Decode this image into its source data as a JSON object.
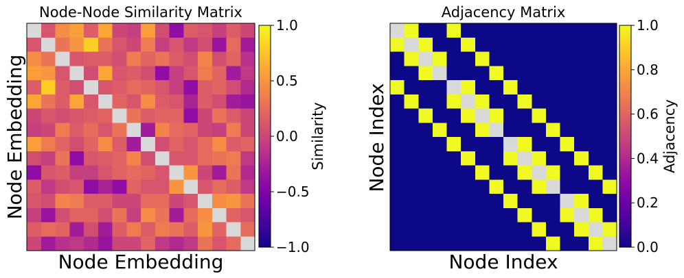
{
  "chart_data": [
    {
      "type": "heatmap",
      "title": "Node-Node Similarity Matrix",
      "xlabel": "Node Embedding",
      "ylabel": "Node Embedding",
      "colorbar_label": "Similarity",
      "colormap": "plasma",
      "diagonal_color": "#d9d9d9",
      "vmin": -1.0,
      "vmax": 1.0,
      "colorbar_ticks": [
        1.0,
        0.5,
        0.0,
        -0.5,
        -1.0
      ],
      "colorbar_tick_labels": [
        "1.0",
        "0.5",
        "0.0",
        "−0.5",
        "−1.0"
      ],
      "size": 16,
      "matrix": [
        [
          1.0,
          0.1,
          0.45,
          0.55,
          0.15,
          0.6,
          0.0,
          -0.05,
          0.55,
          0.05,
          -0.4,
          0.15,
          0.1,
          -0.05,
          0.15,
          0.0
        ],
        [
          0.1,
          1.0,
          0.3,
          0.5,
          0.8,
          0.3,
          0.1,
          0.0,
          0.35,
          -0.05,
          0.1,
          -0.1,
          0.05,
          -0.35,
          0.25,
          -0.3
        ],
        [
          0.45,
          0.3,
          1.0,
          0.1,
          0.15,
          0.15,
          0.05,
          0.35,
          0.2,
          0.3,
          0.15,
          0.05,
          0.4,
          0.05,
          0.2,
          -0.15
        ],
        [
          0.55,
          0.5,
          0.1,
          1.0,
          0.05,
          0.6,
          0.1,
          0.15,
          0.05,
          -0.4,
          -0.05,
          0.1,
          0.35,
          0.2,
          -0.3,
          -0.1
        ],
        [
          0.15,
          0.8,
          0.15,
          0.05,
          1.0,
          0.1,
          0.15,
          0.25,
          0.2,
          0.1,
          -0.05,
          -0.4,
          0.15,
          0.2,
          0.05,
          -0.2
        ],
        [
          0.6,
          0.3,
          0.15,
          0.6,
          0.1,
          1.0,
          0.2,
          0.1,
          0.45,
          0.15,
          0.1,
          -0.25,
          0.15,
          0.05,
          -0.3,
          -0.35
        ],
        [
          0.0,
          0.1,
          0.05,
          0.1,
          0.15,
          0.2,
          1.0,
          0.3,
          0.15,
          0.2,
          0.2,
          -0.4,
          0.0,
          0.3,
          0.15,
          0.0
        ],
        [
          -0.05,
          0.0,
          0.35,
          0.15,
          0.25,
          0.1,
          0.3,
          1.0,
          -0.3,
          0.4,
          0.25,
          0.2,
          0.0,
          -0.05,
          0.35,
          0.0
        ],
        [
          0.55,
          0.35,
          0.2,
          0.05,
          0.2,
          0.45,
          0.15,
          -0.3,
          1.0,
          0.05,
          0.2,
          0.1,
          0.25,
          0.45,
          0.15,
          0.2
        ],
        [
          0.05,
          -0.05,
          0.3,
          -0.4,
          0.1,
          0.15,
          0.2,
          0.4,
          0.05,
          1.0,
          0.1,
          0.1,
          0.25,
          0.3,
          0.35,
          -0.1
        ],
        [
          -0.4,
          0.1,
          0.15,
          -0.05,
          -0.05,
          0.1,
          0.2,
          0.25,
          0.2,
          0.1,
          1.0,
          0.5,
          0.0,
          -0.3,
          0.3,
          -0.2
        ],
        [
          0.15,
          -0.1,
          0.05,
          0.1,
          -0.4,
          -0.25,
          -0.4,
          0.2,
          0.1,
          0.1,
          0.5,
          1.0,
          0.1,
          0.25,
          0.15,
          -0.1
        ],
        [
          0.1,
          0.05,
          0.4,
          0.35,
          0.15,
          0.15,
          0.0,
          0.0,
          0.25,
          0.25,
          0.0,
          0.1,
          1.0,
          0.45,
          0.5,
          0.3
        ],
        [
          -0.05,
          -0.35,
          0.05,
          0.2,
          0.2,
          0.05,
          0.3,
          -0.05,
          0.45,
          0.3,
          -0.3,
          0.25,
          0.45,
          1.0,
          0.2,
          0.1
        ],
        [
          0.15,
          0.25,
          0.2,
          -0.3,
          0.05,
          -0.3,
          0.15,
          0.35,
          0.15,
          0.35,
          0.3,
          0.15,
          0.5,
          0.2,
          1.0,
          0.25
        ],
        [
          0.0,
          -0.3,
          -0.15,
          -0.1,
          -0.2,
          -0.35,
          0.0,
          0.0,
          0.2,
          -0.1,
          -0.2,
          -0.1,
          0.3,
          0.1,
          0.25,
          1.0
        ]
      ]
    },
    {
      "type": "heatmap",
      "title": "Adjacency Matrix",
      "xlabel": "Node Index",
      "ylabel": "Node Index",
      "colorbar_label": "Adjacency",
      "colormap": "plasma",
      "diagonal_color": "#d9d9d9",
      "vmin": 0.0,
      "vmax": 1.0,
      "colorbar_ticks": [
        1.0,
        0.8,
        0.6,
        0.4,
        0.2,
        0.0
      ],
      "colorbar_tick_labels": [
        "1.0",
        "0.8",
        "0.6",
        "0.4",
        "0.2",
        "0.0"
      ],
      "size": 16,
      "edges": [
        [
          0,
          1
        ],
        [
          0,
          4
        ],
        [
          1,
          2
        ],
        [
          1,
          5
        ],
        [
          2,
          3
        ],
        [
          2,
          6
        ],
        [
          3,
          7
        ],
        [
          4,
          5
        ],
        [
          4,
          8
        ],
        [
          5,
          6
        ],
        [
          5,
          9
        ],
        [
          6,
          7
        ],
        [
          6,
          10
        ],
        [
          7,
          11
        ],
        [
          8,
          9
        ],
        [
          8,
          12
        ],
        [
          9,
          10
        ],
        [
          9,
          13
        ],
        [
          10,
          11
        ],
        [
          10,
          14
        ],
        [
          11,
          15
        ],
        [
          12,
          13
        ],
        [
          13,
          14
        ],
        [
          14,
          15
        ]
      ]
    }
  ]
}
